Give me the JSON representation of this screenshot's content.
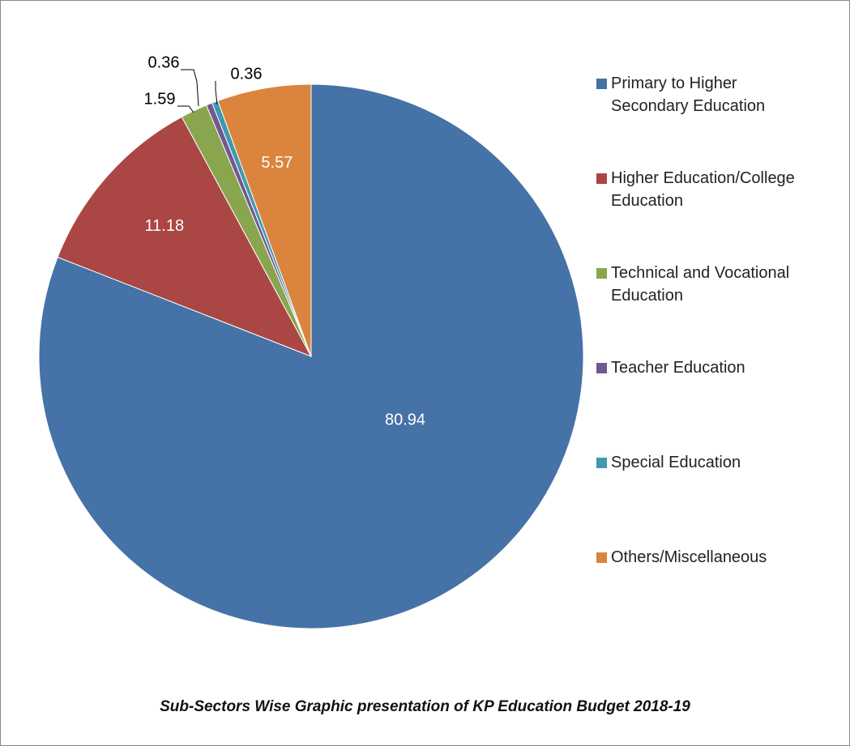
{
  "chart_data": {
    "type": "pie",
    "title": "Sub-Sectors Wise Graphic presentation of KP Education Budget 2018-19",
    "categories": [
      "Primary to Higher\nSecondary Education",
      "Higher Education/College\nEducation",
      "Technical and Vocational\nEducation",
      "Teacher Education",
      "Special Education",
      "Others/Miscellaneous"
    ],
    "values": [
      80.94,
      11.18,
      1.59,
      0.36,
      0.36,
      5.57
    ],
    "colors": [
      "#4572a7",
      "#aa4643",
      "#89a54e",
      "#71588f",
      "#4198af",
      "#db843d"
    ],
    "legend": "right"
  }
}
